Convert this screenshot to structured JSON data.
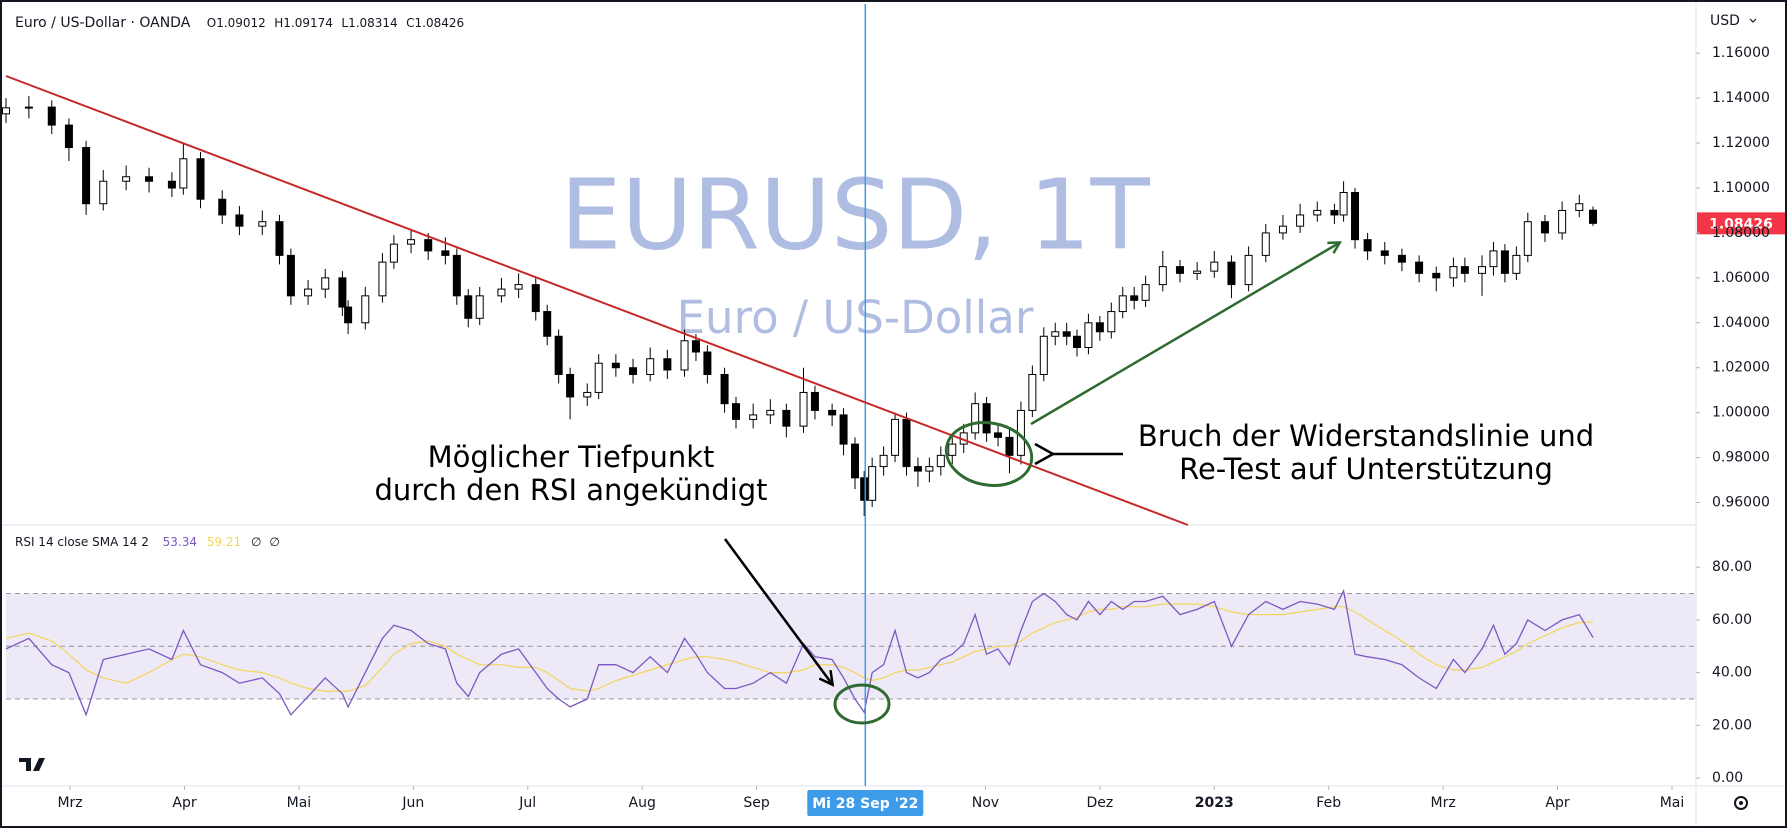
{
  "chart_data": [
    {
      "type": "candlestick",
      "title": "Euro / US-Dollar · OANDA",
      "ohlc_prefixes": [
        "O",
        "H",
        "L",
        "C"
      ],
      "watermark": "EURUSD, 1T",
      "watermark_subtitle": "Euro / US-Dollar",
      "currency": "USD",
      "annotations": [
        "Möglicher Tiefpunkt",
        "durch den RSI angekündigt",
        "Bruch der Widerstandslinie und",
        "Re-Test auf Unterstützung"
      ],
      "up_color": "#ffffff",
      "down_color": "#000000",
      "wick_color": "#000000",
      "last_price_color": "#f23645",
      "xlim": [
        2.44,
        17.21
      ],
      "ylim": [
        0.95,
        1.181
      ],
      "yticks": [
        {
          "value": 0.96,
          "label": "0.96000"
        },
        {
          "value": 0.98,
          "label": "0.98000"
        },
        {
          "value": 1,
          "label": "1.00000"
        },
        {
          "value": 1.02,
          "label": "1.02000"
        },
        {
          "value": 1.04,
          "label": "1.04000"
        },
        {
          "value": 1.06,
          "label": "1.06000"
        },
        {
          "value": 1.08,
          "label": "1.08000"
        },
        {
          "value": 1.1,
          "label": "1.10000"
        },
        {
          "value": 1.12,
          "label": "1.12000"
        },
        {
          "value": 1.14,
          "label": "1.14000"
        },
        {
          "value": 1.16,
          "label": "1.16000"
        }
      ],
      "x": [
        2.44,
        2.64,
        2.84,
        2.99,
        3.14,
        3.29,
        3.49,
        3.69,
        3.89,
        3.99,
        4.14,
        4.33,
        4.48,
        4.68,
        4.83,
        4.93,
        5.08,
        5.23,
        5.38,
        5.43,
        5.58,
        5.73,
        5.83,
        5.98,
        6.13,
        6.28,
        6.38,
        6.48,
        6.58,
        6.77,
        6.92,
        7.07,
        7.17,
        7.27,
        7.37,
        7.52,
        7.62,
        7.77,
        7.92,
        8.07,
        8.22,
        8.37,
        8.47,
        8.57,
        8.72,
        8.82,
        8.97,
        9.12,
        9.26,
        9.41,
        9.51,
        9.66,
        9.76,
        9.86,
        9.94,
        10.01,
        10.11,
        10.21,
        10.31,
        10.41,
        10.51,
        10.61,
        10.71,
        10.81,
        10.91,
        11.01,
        11.11,
        11.21,
        11.31,
        11.41,
        11.51,
        11.61,
        11.71,
        11.8,
        11.9,
        12,
        12.1,
        12.2,
        12.3,
        12.4,
        12.55,
        12.7,
        12.85,
        13,
        13.15,
        13.3,
        13.45,
        13.6,
        13.75,
        13.9,
        14.05,
        14.13,
        14.23,
        14.34,
        14.49,
        14.64,
        14.79,
        14.94,
        15.09,
        15.19,
        15.34,
        15.44,
        15.54,
        15.64,
        15.74,
        15.89,
        16.04,
        16.19,
        16.31
      ],
      "open": [
        1.133,
        1.1357,
        1.136,
        1.128,
        1.118,
        1.093,
        1.103,
        1.105,
        1.103,
        1.1,
        1.113,
        1.095,
        1.088,
        1.083,
        1.085,
        1.07,
        1.052,
        1.055,
        1.06,
        1.047,
        1.04,
        1.052,
        1.067,
        1.075,
        1.077,
        1.072,
        1.07,
        1.052,
        1.042,
        1.052,
        1.055,
        1.057,
        1.045,
        1.034,
        1.017,
        1.007,
        1.009,
        1.022,
        1.02,
        1.017,
        1.024,
        1.019,
        1.032,
        1.027,
        1.017,
        1.004,
        0.997,
        0.999,
        1.001,
        0.994,
        1.009,
        1.001,
        0.999,
        0.986,
        0.971,
        0.961,
        0.976,
        0.981,
        0.997,
        0.976,
        0.974,
        0.976,
        0.981,
        0.986,
        0.991,
        1.004,
        0.991,
        0.989,
        0.981,
        1.001,
        1.017,
        1.034,
        1.036,
        1.034,
        1.029,
        1.04,
        1.036,
        1.045,
        1.052,
        1.05,
        1.057,
        1.065,
        1.062,
        1.063,
        1.067,
        1.057,
        1.07,
        1.08,
        1.083,
        1.088,
        1.09,
        1.088,
        1.098,
        1.077,
        1.072,
        1.07,
        1.067,
        1.062,
        1.06,
        1.065,
        1.062,
        1.065,
        1.072,
        1.062,
        1.07,
        1.085,
        1.08,
        1.09,
        1.09012
      ],
      "high": [
        1.14,
        1.141,
        1.139,
        1.131,
        1.121,
        1.108,
        1.11,
        1.109,
        1.107,
        1.12,
        1.116,
        1.099,
        1.092,
        1.09,
        1.088,
        1.073,
        1.059,
        1.064,
        1.063,
        1.05,
        1.056,
        1.071,
        1.079,
        1.081,
        1.08,
        1.078,
        1.073,
        1.055,
        1.056,
        1.06,
        1.062,
        1.06,
        1.048,
        1.037,
        1.02,
        1.013,
        1.026,
        1.026,
        1.024,
        1.029,
        1.028,
        1.037,
        1.035,
        1.03,
        1.02,
        1.007,
        1.004,
        1.006,
        1.004,
        1.02,
        1.012,
        1.004,
        1.002,
        0.989,
        0.974,
        0.98,
        0.985,
        1,
        1,
        0.98,
        0.98,
        0.985,
        0.99,
        0.995,
        1.009,
        1.007,
        0.995,
        0.993,
        1.005,
        1.021,
        1.038,
        1.04,
        1.04,
        1.037,
        1.044,
        1.043,
        1.049,
        1.056,
        1.056,
        1.061,
        1.072,
        1.068,
        1.067,
        1.072,
        1.07,
        1.074,
        1.084,
        1.088,
        1.093,
        1.094,
        1.093,
        1.103,
        1.1,
        1.08,
        1.076,
        1.073,
        1.07,
        1.065,
        1.069,
        1.069,
        1.07,
        1.076,
        1.075,
        1.074,
        1.089,
        1.088,
        1.094,
        1.097,
        1.09174
      ],
      "low": [
        1.129,
        1.131,
        1.124,
        1.112,
        1.088,
        1.09,
        1.099,
        1.098,
        1.096,
        1.097,
        1.091,
        1.084,
        1.079,
        1.079,
        1.066,
        1.048,
        1.048,
        1.051,
        1.043,
        1.035,
        1.037,
        1.049,
        1.064,
        1.071,
        1.068,
        1.066,
        1.048,
        1.038,
        1.039,
        1.049,
        1.051,
        1.041,
        1.03,
        1.013,
        0.997,
        1.003,
        1.006,
        1.016,
        1.013,
        1.014,
        1.015,
        1.016,
        1.023,
        1.013,
        1,
        0.993,
        0.993,
        0.995,
        0.989,
        0.991,
        0.997,
        0.994,
        0.981,
        0.966,
        0.954,
        0.958,
        0.972,
        0.978,
        0.972,
        0.967,
        0.969,
        0.972,
        0.977,
        0.982,
        0.988,
        0.987,
        0.985,
        0.973,
        0.977,
        0.998,
        1.014,
        1.03,
        1.03,
        1.025,
        1.026,
        1.032,
        1.033,
        1.042,
        1.046,
        1.047,
        1.054,
        1.058,
        1.059,
        1.06,
        1.051,
        1.054,
        1.067,
        1.077,
        1.08,
        1.085,
        1.084,
        1.085,
        1.073,
        1.068,
        1.066,
        1.063,
        1.058,
        1.054,
        1.056,
        1.058,
        1.052,
        1.061,
        1.058,
        1.059,
        1.067,
        1.076,
        1.077,
        1.087,
        1.08314
      ],
      "close": [
        1.1357,
        1.136,
        1.128,
        1.118,
        1.093,
        1.103,
        1.105,
        1.103,
        1.1,
        1.113,
        1.095,
        1.088,
        1.083,
        1.085,
        1.07,
        1.052,
        1.055,
        1.06,
        1.047,
        1.04,
        1.052,
        1.067,
        1.075,
        1.077,
        1.072,
        1.07,
        1.052,
        1.042,
        1.052,
        1.055,
        1.057,
        1.045,
        1.034,
        1.017,
        1.007,
        1.009,
        1.022,
        1.02,
        1.017,
        1.024,
        1.019,
        1.032,
        1.027,
        1.017,
        1.004,
        0.997,
        0.999,
        1.001,
        0.994,
        1.009,
        1.001,
        0.999,
        0.986,
        0.971,
        0.961,
        0.976,
        0.981,
        0.997,
        0.976,
        0.974,
        0.976,
        0.981,
        0.986,
        0.991,
        1.004,
        0.991,
        0.989,
        0.981,
        1.001,
        1.017,
        1.034,
        1.036,
        1.034,
        1.029,
        1.04,
        1.036,
        1.045,
        1.052,
        1.05,
        1.057,
        1.065,
        1.062,
        1.063,
        1.067,
        1.057,
        1.07,
        1.08,
        1.083,
        1.088,
        1.09,
        1.088,
        1.098,
        1.077,
        1.072,
        1.07,
        1.067,
        1.062,
        1.06,
        1.065,
        1.062,
        1.065,
        1.072,
        1.062,
        1.07,
        1.085,
        1.08,
        1.09,
        1.093,
        1.08426
      ]
    },
    {
      "type": "line",
      "title": "RSI 14 close SMA 14 2",
      "flags": [
        "∅",
        "∅"
      ],
      "xlim": [
        2.44,
        17.21
      ],
      "ylim": [
        -3,
        96
      ],
      "yticks": [
        {
          "value": 0,
          "label": "0.00"
        },
        {
          "value": 20,
          "label": "20.00"
        },
        {
          "value": 40,
          "label": "40.00"
        },
        {
          "value": 60,
          "label": "60.00"
        },
        {
          "value": 80,
          "label": "80.00"
        }
      ],
      "xticks": [
        {
          "value": 3,
          "label": "Mrz"
        },
        {
          "value": 4,
          "label": "Apr"
        },
        {
          "value": 5,
          "label": "Mai"
        },
        {
          "value": 6,
          "label": "Jun"
        },
        {
          "value": 7,
          "label": "Jul"
        },
        {
          "value": 8,
          "label": "Aug"
        },
        {
          "value": 9,
          "label": "Sep"
        },
        {
          "value": 11,
          "label": "Nov"
        },
        {
          "value": 12,
          "label": "Dez"
        },
        {
          "value": 13,
          "label": "2023",
          "bold": true
        },
        {
          "value": 14,
          "label": "Feb"
        },
        {
          "value": 15,
          "label": "Mrz"
        },
        {
          "value": 16,
          "label": "Apr"
        },
        {
          "value": 17,
          "label": "Mai"
        }
      ],
      "band": [
        30,
        70
      ],
      "midline": 50,
      "band_color": "#ede9f7",
      "crosshair": {
        "x": 9.95,
        "label": "Mi 28 Sep '22",
        "color": "#3d9be9"
      },
      "x": [
        2.44,
        2.64,
        2.84,
        2.99,
        3.14,
        3.29,
        3.49,
        3.69,
        3.89,
        3.99,
        4.14,
        4.33,
        4.48,
        4.68,
        4.83,
        4.93,
        5.08,
        5.23,
        5.38,
        5.43,
        5.58,
        5.73,
        5.83,
        5.98,
        6.13,
        6.28,
        6.38,
        6.48,
        6.58,
        6.77,
        6.92,
        7.07,
        7.17,
        7.27,
        7.37,
        7.52,
        7.62,
        7.77,
        7.92,
        8.07,
        8.22,
        8.37,
        8.47,
        8.57,
        8.72,
        8.82,
        8.97,
        9.12,
        9.26,
        9.41,
        9.51,
        9.66,
        9.76,
        9.86,
        9.94,
        10.01,
        10.11,
        10.21,
        10.31,
        10.41,
        10.51,
        10.61,
        10.71,
        10.81,
        10.91,
        11.01,
        11.11,
        11.21,
        11.31,
        11.41,
        11.51,
        11.61,
        11.71,
        11.8,
        11.9,
        12,
        12.1,
        12.2,
        12.3,
        12.4,
        12.55,
        12.7,
        12.85,
        13,
        13.15,
        13.3,
        13.45,
        13.6,
        13.75,
        13.9,
        14.05,
        14.13,
        14.23,
        14.34,
        14.49,
        14.64,
        14.79,
        14.94,
        15.09,
        15.19,
        15.34,
        15.44,
        15.54,
        15.64,
        15.74,
        15.89,
        16.04,
        16.19,
        16.31
      ],
      "series": [
        {
          "color": "#7e57c2",
          "values": [
            49,
            53,
            43,
            40,
            24,
            45,
            47,
            49,
            45,
            56,
            43,
            40,
            36,
            38,
            32,
            24,
            31,
            38,
            32,
            27,
            40,
            53,
            58,
            56,
            51,
            49,
            36,
            31,
            40,
            47,
            49,
            40,
            34,
            30,
            27,
            30,
            43,
            43,
            40,
            46,
            40,
            53,
            47,
            40,
            34,
            34,
            36,
            40,
            36,
            51,
            46,
            45,
            38,
            30,
            25,
            40,
            43,
            56,
            40,
            38,
            40,
            45,
            47,
            51,
            62,
            47,
            49,
            43,
            56,
            67,
            70,
            67,
            62,
            60,
            67,
            62,
            67,
            64,
            67,
            67,
            69,
            62,
            64,
            67,
            50,
            62,
            67,
            64,
            67,
            66,
            64,
            71,
            47,
            46,
            45,
            43,
            38,
            34,
            45,
            40,
            49,
            58,
            47,
            51,
            60,
            56,
            60,
            62,
            53.34
          ]
        },
        {
          "color": "#f2d65a",
          "values": [
            53,
            55,
            52,
            47,
            41,
            38,
            36,
            40,
            45,
            47,
            46,
            43,
            41,
            40,
            38,
            36,
            34,
            33,
            33,
            33,
            35,
            42,
            47,
            51,
            52,
            50,
            47,
            45,
            43,
            43,
            42,
            42,
            40,
            37,
            34,
            33,
            34,
            37,
            39,
            41,
            43,
            45,
            46,
            46,
            45,
            44,
            42,
            40,
            40,
            41,
            43,
            43,
            42,
            40,
            38,
            37,
            38,
            40,
            41,
            41,
            42,
            43,
            44,
            46,
            48,
            49,
            50,
            50,
            52,
            55,
            57,
            59,
            60,
            61,
            63,
            64,
            64,
            65,
            65,
            65,
            66,
            66,
            66,
            65,
            63,
            62,
            62,
            62,
            63,
            64,
            65,
            65,
            63,
            60,
            56,
            52,
            47,
            43,
            41,
            41,
            42,
            44,
            46,
            48,
            51,
            54,
            57,
            59,
            59.21
          ]
        }
      ]
    }
  ]
}
